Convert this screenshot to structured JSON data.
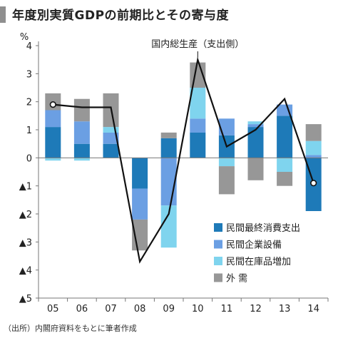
{
  "title": "年度別実質GDPの前期比とその寄与度",
  "source": "（出所）内閣府資料をもとに筆者作成",
  "colors": {
    "consumption": "#1e7ab8",
    "investment": "#6b9fe3",
    "inventory": "#7fd4ee",
    "external": "#979797",
    "line": "#111111",
    "axis": "#777777"
  },
  "chart_data": {
    "type": "bar",
    "stacked": true,
    "y_unit": "%",
    "ylim": [
      -5,
      4
    ],
    "y_ticks": [
      {
        "value": 4,
        "label": "4"
      },
      {
        "value": 3,
        "label": "3"
      },
      {
        "value": 2,
        "label": "2"
      },
      {
        "value": 1,
        "label": "1"
      },
      {
        "value": 0,
        "label": "0"
      },
      {
        "value": -1,
        "label": "▲1"
      },
      {
        "value": -2,
        "label": "▲2"
      },
      {
        "value": -3,
        "label": "▲3"
      },
      {
        "value": -4,
        "label": "▲4"
      },
      {
        "value": -5,
        "label": "▲5"
      }
    ],
    "categories": [
      "05",
      "06",
      "07",
      "08",
      "09",
      "10",
      "11",
      "12",
      "13",
      "14"
    ],
    "series": [
      {
        "name": "民間最終消費支出",
        "color_key": "consumption",
        "values": [
          1.1,
          0.5,
          0.5,
          -1.1,
          0.7,
          0.9,
          0.8,
          1.1,
          1.5,
          -1.9
        ]
      },
      {
        "name": "民間企業設備",
        "color_key": "investment",
        "values": [
          0.6,
          0.8,
          0.4,
          -1.1,
          -1.7,
          0.5,
          0.6,
          0.1,
          0.4,
          0.1
        ]
      },
      {
        "name": "民間在庫品増加",
        "color_key": "inventory",
        "values": [
          -0.1,
          -0.1,
          0.2,
          0.0,
          -1.5,
          1.1,
          -0.3,
          0.1,
          -0.5,
          0.5
        ]
      },
      {
        "name": "外 需",
        "color_key": "external",
        "values": [
          0.6,
          0.8,
          1.2,
          -1.1,
          0.2,
          0.9,
          -1.0,
          -0.8,
          -0.5,
          0.6
        ]
      }
    ],
    "line": {
      "name": "国内総生産（支出側）",
      "values": [
        1.9,
        1.8,
        1.8,
        -3.7,
        -2.0,
        3.5,
        0.4,
        1.0,
        2.1,
        -0.9
      ]
    },
    "legend_position": "bottom-right"
  }
}
